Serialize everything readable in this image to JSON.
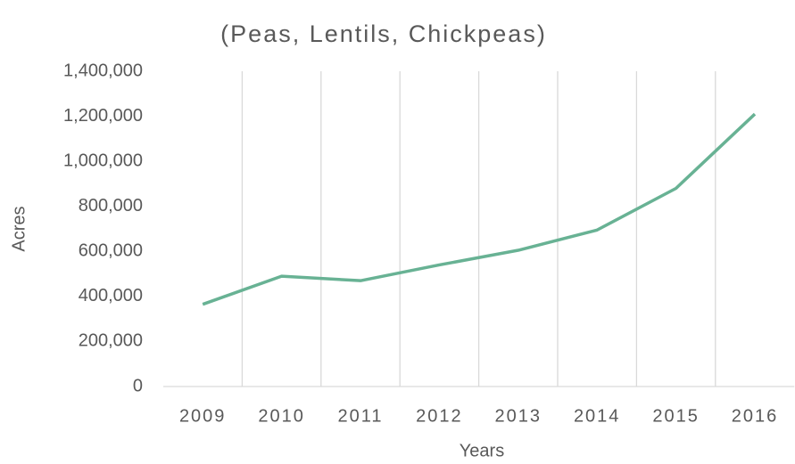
{
  "chart_data": {
    "type": "line",
    "title": "(Peas, Lentils, Chickpeas)",
    "x_label": "Years",
    "y_label": "Acres",
    "categories": [
      "2009",
      "2010",
      "2011",
      "2012",
      "2013",
      "2014",
      "2015",
      "2016"
    ],
    "series": [
      {
        "name": "Acres",
        "color": "#68b294",
        "values": [
          365000,
          490000,
          470000,
          540000,
          605000,
          695000,
          880000,
          1210000
        ]
      }
    ],
    "ylim": [
      0,
      1400000
    ],
    "yticks": [
      0,
      {
        "value": 200000,
        "label": "200,000"
      },
      {
        "value": 400000,
        "label": "400,000"
      },
      {
        "value": 600000,
        "label": "600,000"
      },
      {
        "value": 800000,
        "label": "800,000"
      },
      {
        "value": 1000000,
        "label": "1,000,000"
      },
      {
        "value": 1200000,
        "label": "1,200,000"
      },
      {
        "value": 1400000,
        "label": "1,400,000"
      }
    ],
    "grid": false
  }
}
